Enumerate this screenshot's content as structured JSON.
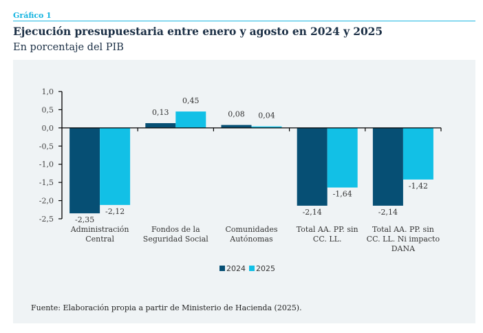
{
  "header": {
    "figure_label": "Gráfico 1",
    "title": "Ejecución presupuestaria entre enero y agosto en 2024 y 2025",
    "subtitle": "En porcentaje del PIB"
  },
  "footer": {
    "source": "Fuente: Elaboración propia a partir de Ministerio de Hacienda (2025)."
  },
  "colors": {
    "accent": "#14b4e0",
    "series_2024": "#064f74",
    "series_2025": "#12c0e6",
    "panel_bg": "#eff3f5"
  },
  "chart_data": {
    "type": "bar",
    "title": "Ejecución presupuestaria entre enero y agosto en 2024 y 2025",
    "subtitle": "En porcentaje del PIB",
    "xlabel": "",
    "ylabel": "",
    "ylim": [
      -2.5,
      1.0
    ],
    "yticks": [
      1.0,
      0.5,
      0.0,
      -0.5,
      -1.0,
      -1.5,
      -2.0,
      -2.5
    ],
    "ytick_labels": [
      "1,0",
      "0,5",
      "0,0",
      "-0,5",
      "-1,0",
      "-1,5",
      "-2,0",
      "-2,5"
    ],
    "grid": false,
    "legend_position": "bottom-center",
    "categories": [
      [
        "Administración",
        "Central"
      ],
      [
        "Fondos de la",
        "Seguridad Social"
      ],
      [
        "Comunidades",
        "Autónomas"
      ],
      [
        "Total AA. PP. sin",
        "CC. LL."
      ],
      [
        "Total AA. PP. sin",
        "CC. LL. Ni impacto",
        "DANA"
      ]
    ],
    "series": [
      {
        "name": "2024",
        "color": "#064f74",
        "values": [
          -2.35,
          0.13,
          0.08,
          -2.14,
          -2.14
        ],
        "labels": [
          "-2,35",
          "0,13",
          "0,08",
          "-2,14",
          "-2,14"
        ]
      },
      {
        "name": "2025",
        "color": "#12c0e6",
        "values": [
          -2.12,
          0.45,
          0.04,
          -1.64,
          -1.42
        ],
        "labels": [
          "-2,12",
          "0,45",
          "0,04",
          "-1,64",
          "-1,42"
        ]
      }
    ]
  }
}
